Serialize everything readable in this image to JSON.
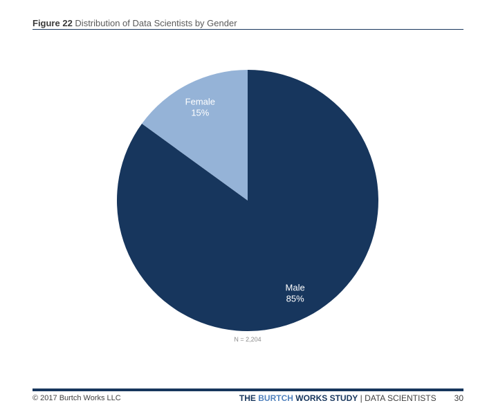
{
  "header": {
    "figure_number": "Figure 22",
    "figure_title": "Distribution of Data Scientists by Gender"
  },
  "chart_data": {
    "type": "pie",
    "title": "Distribution of Data Scientists by Gender",
    "categories": [
      "Male",
      "Female"
    ],
    "values": [
      85,
      15
    ],
    "labels": [
      "85%",
      "15%"
    ],
    "colors": [
      "#17365d",
      "#95b3d7"
    ],
    "note": "N = 2,204"
  },
  "footer": {
    "copyright": "© 2017 Burtch Works LLC",
    "brand_the": "THE ",
    "brand_burtch": "BURTCH ",
    "brand_works": "WORKS",
    "brand_study": " STUDY",
    "separator": " | ",
    "section": "DATA SCIENTISTS",
    "page_number": "30"
  },
  "colors": {
    "accent": "#17365d",
    "accent_light": "#4f81bd"
  }
}
